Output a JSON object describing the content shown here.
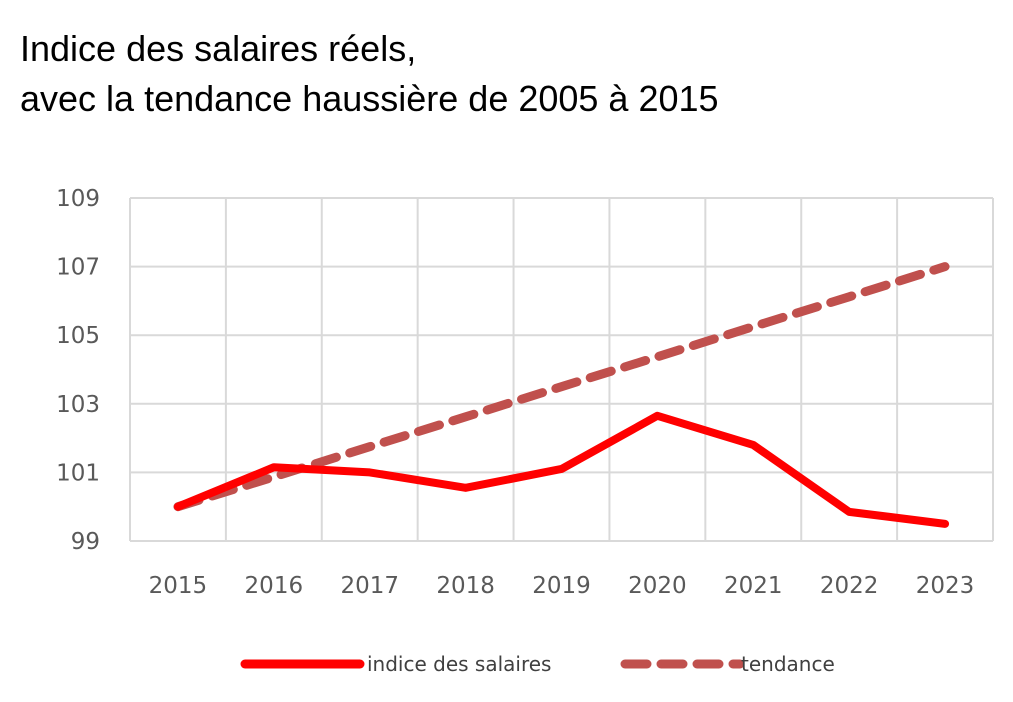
{
  "chart_data": {
    "type": "line",
    "title_lines": [
      "Indice des salaires réels,",
      "avec la tendance haussière de 2005 à 2015"
    ],
    "categories": [
      "2015",
      "2016",
      "2017",
      "2018",
      "2019",
      "2020",
      "2021",
      "2022",
      "2023"
    ],
    "ylim": [
      99,
      109
    ],
    "yticks": [
      "99",
      "101",
      "103",
      "105",
      "107",
      "109"
    ],
    "grid": true,
    "legend": "bottom",
    "series": [
      {
        "name": "indice des salaires",
        "values": [
          100,
          101.15,
          101.0,
          100.55,
          101.1,
          102.65,
          101.8,
          99.85,
          99.5
        ],
        "color": "#ff0000",
        "style": "solid"
      },
      {
        "name": "tendance",
        "values": [
          100,
          100.87,
          101.75,
          102.62,
          103.5,
          104.37,
          105.25,
          106.12,
          107.0
        ],
        "color": "#c0504d",
        "style": "dashed"
      }
    ]
  }
}
